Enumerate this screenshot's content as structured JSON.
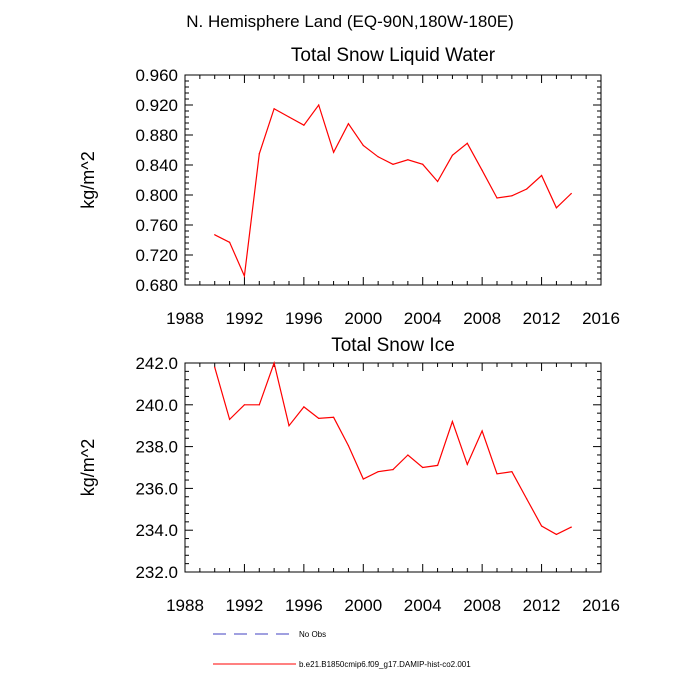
{
  "figure": {
    "suptitle": "N. Hemisphere Land (EQ-90N,180W-180E)"
  },
  "chart_data": [
    {
      "type": "line",
      "title": "Total Snow Liquid Water",
      "xlabel": "",
      "ylabel": "kg/m^2",
      "xlim": [
        1988,
        2016
      ],
      "ylim": [
        0.68,
        0.96
      ],
      "xticks": [
        1988,
        1992,
        1996,
        2000,
        2004,
        2008,
        2012,
        2016
      ],
      "xtick_labels": [
        "1988",
        "1992",
        "1996",
        "2000",
        "2004",
        "2008",
        "2012",
        "2016"
      ],
      "yticks": [
        0.68,
        0.72,
        0.76,
        0.8,
        0.84,
        0.88,
        0.92,
        0.96
      ],
      "ytick_labels": [
        "0.680",
        "0.720",
        "0.760",
        "0.800",
        "0.840",
        "0.880",
        "0.920",
        "0.960"
      ],
      "grid": false,
      "series": [
        {
          "name": "b.e21.B1850cmip6.f09_g17.DAMIP-hist-co2.001",
          "color": "#ff0000",
          "x": [
            1990,
            1991,
            1992,
            1993,
            1994,
            1995,
            1996,
            1997,
            1998,
            1999,
            2000,
            2001,
            2002,
            2003,
            2004,
            2005,
            2006,
            2007,
            2008,
            2009,
            2010,
            2011,
            2012,
            2013,
            2014
          ],
          "y": [
            0.747,
            0.737,
            0.692,
            0.855,
            0.915,
            0.904,
            0.893,
            0.92,
            0.857,
            0.895,
            0.866,
            0.851,
            0.841,
            0.847,
            0.841,
            0.818,
            0.853,
            0.869,
            0.833,
            0.796,
            0.799,
            0.808,
            0.826,
            0.783,
            0.802
          ]
        }
      ]
    },
    {
      "type": "line",
      "title": "Total Snow Ice",
      "xlabel": "",
      "ylabel": "kg/m^2",
      "xlim": [
        1988,
        2016
      ],
      "ylim": [
        232,
        242
      ],
      "xticks": [
        1988,
        1992,
        1996,
        2000,
        2004,
        2008,
        2012,
        2016
      ],
      "xtick_labels": [
        "1988",
        "1992",
        "1996",
        "2000",
        "2004",
        "2008",
        "2012",
        "2016"
      ],
      "yticks": [
        232,
        234,
        236,
        238,
        240,
        242
      ],
      "ytick_labels": [
        "232.0",
        "234.0",
        "236.0",
        "238.0",
        "240.0",
        "242.0"
      ],
      "grid": false,
      "series": [
        {
          "name": "b.e21.B1850cmip6.f09_g17.DAMIP-hist-co2.001",
          "color": "#ff0000",
          "x": [
            1990,
            1991,
            1992,
            1993,
            1994,
            1995,
            1996,
            1997,
            1998,
            1999,
            2000,
            2001,
            2002,
            2003,
            2004,
            2005,
            2006,
            2007,
            2008,
            2009,
            2010,
            2011,
            2012,
            2013,
            2014
          ],
          "y": [
            241.8,
            239.3,
            240.0,
            240.0,
            242.0,
            239.0,
            239.9,
            239.35,
            239.4,
            238.05,
            236.45,
            236.8,
            236.9,
            237.6,
            237.0,
            237.1,
            239.2,
            237.15,
            238.75,
            236.7,
            236.8,
            235.5,
            234.2,
            233.8,
            234.15
          ]
        }
      ]
    }
  ],
  "legend": {
    "placement": "bottom-center",
    "items": [
      {
        "label": "No Obs",
        "color": "#4040c0",
        "style": "dashed"
      },
      {
        "label": "b.e21.B1850cmip6.f09_g17.DAMIP-hist-co2.001",
        "color": "#ff0000",
        "style": "solid"
      }
    ]
  }
}
